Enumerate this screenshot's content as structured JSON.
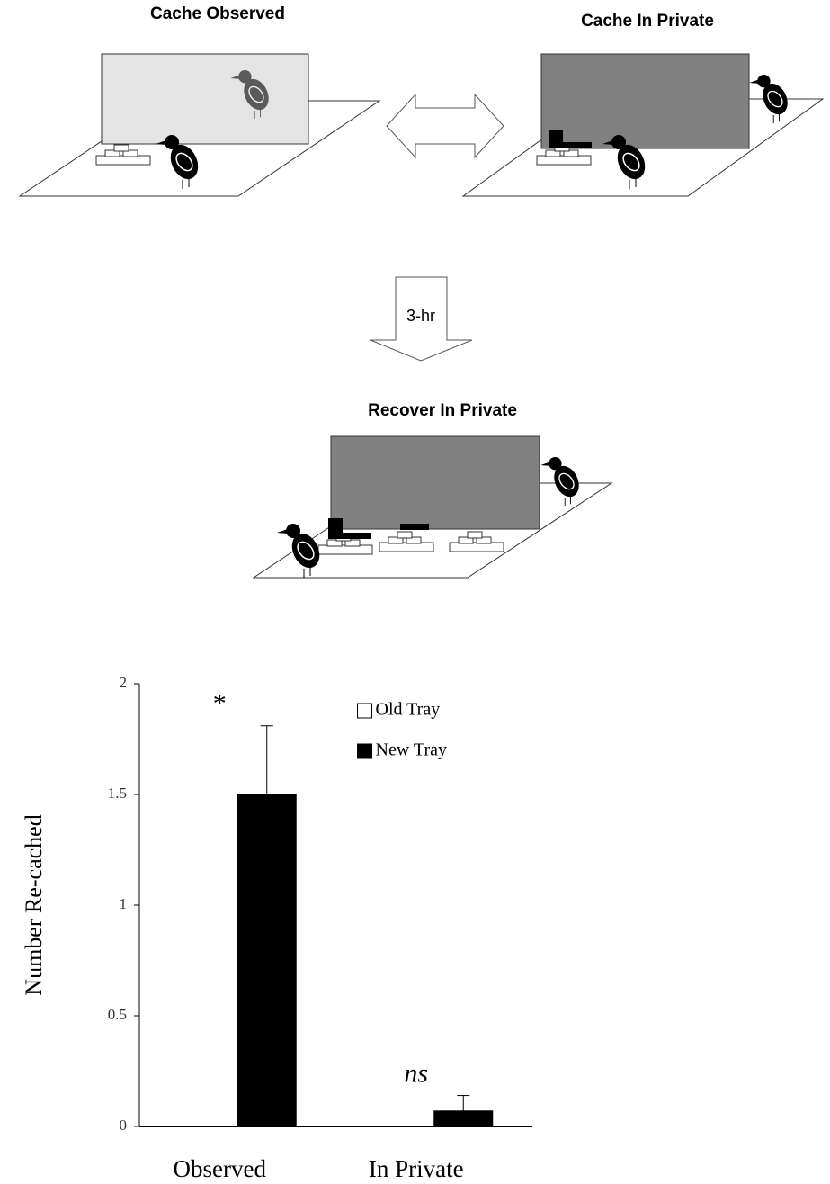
{
  "diagram": {
    "panels": [
      "Cache Observed",
      "Cache In Private",
      "Recover In Private"
    ],
    "delay": "3-hr"
  },
  "chart_data": {
    "type": "bar",
    "categories": [
      "Observed",
      "In Private"
    ],
    "series": [
      {
        "name": "Old Tray",
        "color": "#ffffff",
        "values": [
          0,
          0
        ]
      },
      {
        "name": "New Tray",
        "color": "#000000",
        "values": [
          1.5,
          0.07
        ],
        "errors": [
          0.31,
          0.07
        ]
      }
    ],
    "ylabel": "Number Re-cached",
    "ylim": [
      0,
      2
    ],
    "yticks": [
      0,
      0.5,
      1,
      1.5,
      2
    ],
    "annotations": [
      "*",
      "ns"
    ],
    "legend": "upper right"
  }
}
